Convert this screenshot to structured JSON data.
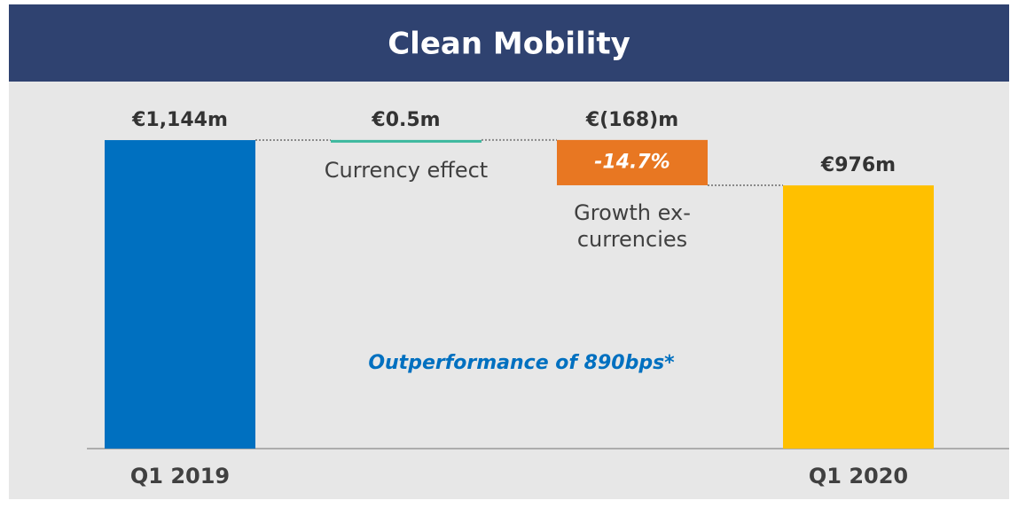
{
  "chart_data": {
    "type": "waterfall",
    "title": "Clean Mobility",
    "categories": [
      "Q1 2019",
      "Currency effect",
      "Growth ex-currencies",
      "Q1 2020"
    ],
    "values": [
      1144,
      0.5,
      -168,
      976
    ],
    "value_labels": [
      "€1,144m",
      "€0.5m",
      "€(168)m",
      "€976m"
    ],
    "colors": [
      "#0070c0",
      "#3cb89e",
      "#e87722",
      "#ffc000"
    ],
    "ylim": [
      0,
      1200
    ],
    "annotations": [
      "-14.7%",
      "Outperformance of 890bps*"
    ]
  }
}
